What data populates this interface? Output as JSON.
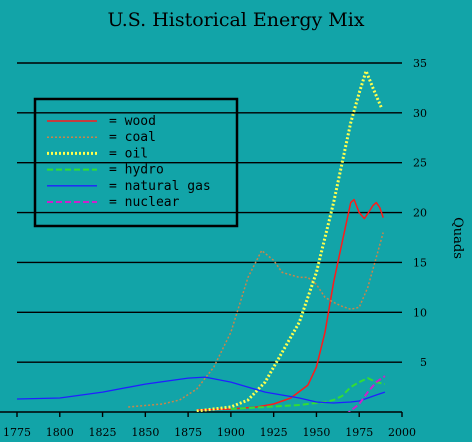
{
  "chart_data": {
    "type": "line",
    "title": "U.S. Historical Energy Mix",
    "xlabel": "",
    "ylabel": "Quads",
    "xlim": [
      1775,
      2000
    ],
    "ylim": [
      0,
      35
    ],
    "xticks": [
      1775,
      1800,
      1825,
      1850,
      1875,
      1900,
      1925,
      1950,
      1975,
      2000
    ],
    "yticks": [
      5,
      10,
      15,
      20,
      25,
      30,
      35
    ],
    "legend_position": "top-left",
    "grid": "horizontal",
    "series": [
      {
        "name": "wood",
        "color": "#ff1a1a",
        "dash": "solid",
        "points": [
          [
            1880,
            0.2
          ],
          [
            1900,
            0.3
          ],
          [
            1915,
            0.5
          ],
          [
            1925,
            0.8
          ],
          [
            1935,
            1.4
          ],
          [
            1945,
            2.7
          ],
          [
            1950,
            4.5
          ],
          [
            1955,
            8
          ],
          [
            1960,
            13
          ],
          [
            1965,
            17
          ],
          [
            1970,
            21
          ],
          [
            1972,
            21.3
          ],
          [
            1975,
            20
          ],
          [
            1978,
            19.4
          ],
          [
            1980,
            19.9
          ],
          [
            1983,
            20.7
          ],
          [
            1985,
            21
          ],
          [
            1987,
            20.5
          ],
          [
            1989,
            19.5
          ]
        ]
      },
      {
        "name": "coal",
        "color": "#c8864a",
        "dash": "dotted",
        "points": [
          [
            1840,
            0.5
          ],
          [
            1860,
            0.8
          ],
          [
            1870,
            1.2
          ],
          [
            1880,
            2.3
          ],
          [
            1890,
            4.5
          ],
          [
            1900,
            8
          ],
          [
            1910,
            13.5
          ],
          [
            1918,
            16.2
          ],
          [
            1925,
            15.2
          ],
          [
            1930,
            14
          ],
          [
            1940,
            13.5
          ],
          [
            1945,
            13.5
          ],
          [
            1950,
            12.8
          ],
          [
            1955,
            11.5
          ],
          [
            1960,
            11
          ],
          [
            1965,
            10.6
          ],
          [
            1970,
            10.3
          ],
          [
            1975,
            10.5
          ],
          [
            1980,
            12.5
          ],
          [
            1985,
            15.5
          ],
          [
            1989,
            18
          ]
        ]
      },
      {
        "name": "oil",
        "color": "#ffff4d",
        "dash": "dotted",
        "points": [
          [
            1880,
            0.1
          ],
          [
            1900,
            0.5
          ],
          [
            1910,
            1.2
          ],
          [
            1920,
            3
          ],
          [
            1930,
            6
          ],
          [
            1940,
            9
          ],
          [
            1950,
            14
          ],
          [
            1960,
            21
          ],
          [
            1970,
            29
          ],
          [
            1975,
            32
          ],
          [
            1979,
            34.2
          ],
          [
            1983,
            32.5
          ],
          [
            1988,
            30.5
          ]
        ]
      },
      {
        "name": "hydro",
        "color": "#33dd33",
        "dash": "dashed",
        "points": [
          [
            1900,
            0.3
          ],
          [
            1920,
            0.5
          ],
          [
            1940,
            0.7
          ],
          [
            1955,
            1.0
          ],
          [
            1960,
            1.2
          ],
          [
            1965,
            1.6
          ],
          [
            1970,
            2.5
          ],
          [
            1975,
            3.0
          ],
          [
            1980,
            3.4
          ],
          [
            1985,
            3.0
          ],
          [
            1990,
            2.8
          ]
        ]
      },
      {
        "name": "natural gas",
        "color": "#2020ff",
        "dash": "solid",
        "points": [
          [
            1775,
            1.3
          ],
          [
            1800,
            1.4
          ],
          [
            1825,
            2.0
          ],
          [
            1850,
            2.8
          ],
          [
            1875,
            3.4
          ],
          [
            1885,
            3.5
          ],
          [
            1900,
            3.0
          ],
          [
            1920,
            2.0
          ],
          [
            1940,
            1.4
          ],
          [
            1950,
            1.0
          ],
          [
            1960,
            0.9
          ],
          [
            1970,
            1.0
          ],
          [
            1975,
            1.1
          ],
          [
            1980,
            1.4
          ],
          [
            1985,
            1.7
          ],
          [
            1990,
            2.0
          ]
        ]
      },
      {
        "name": "nuclear",
        "color": "#cc22cc",
        "dash": "dashed",
        "points": [
          [
            1967,
            -0.3
          ],
          [
            1975,
            0.8
          ],
          [
            1980,
            2.0
          ],
          [
            1985,
            3.0
          ],
          [
            1990,
            3.6
          ]
        ]
      }
    ]
  }
}
